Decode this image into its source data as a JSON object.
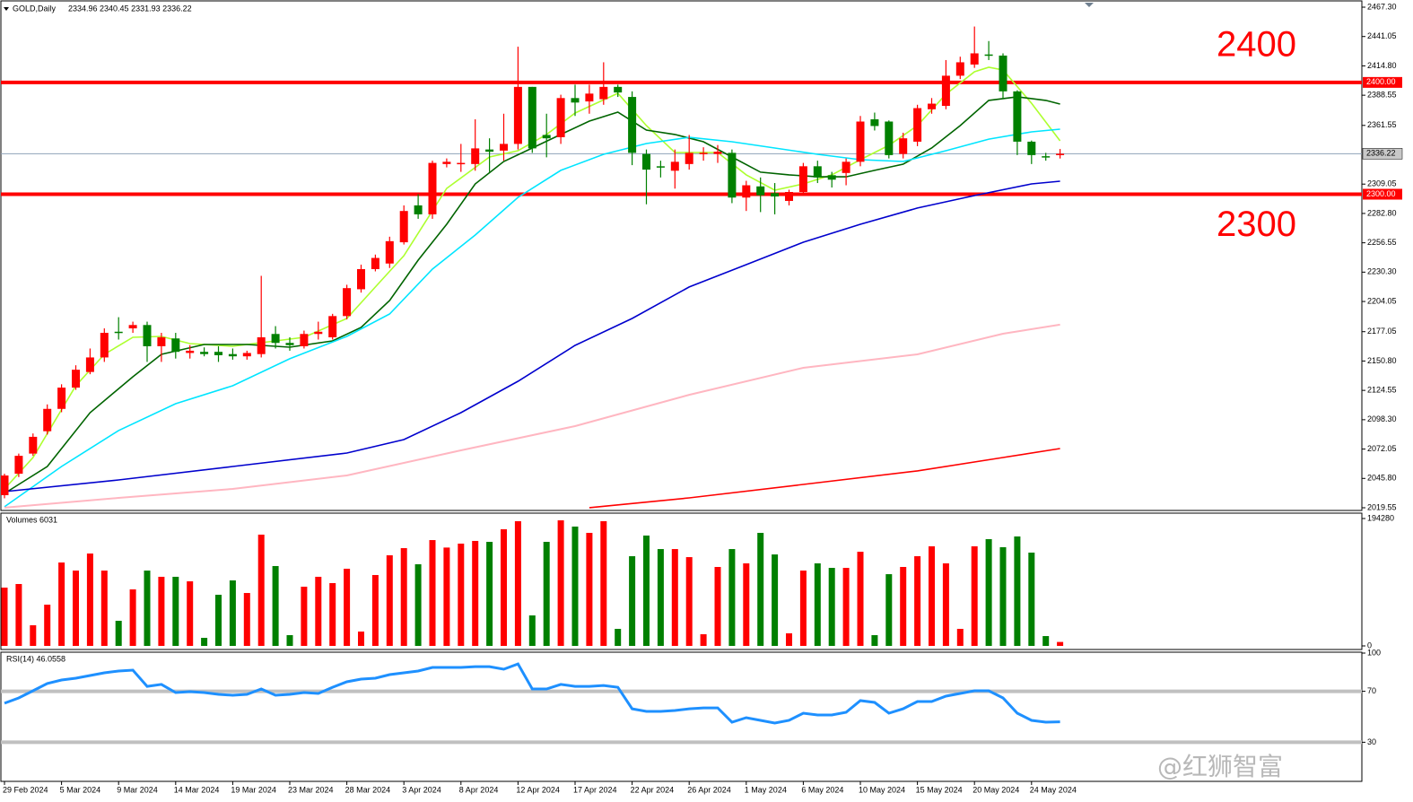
{
  "chart_data": [
    {
      "type": "candlestick",
      "title": "GOLD,Daily",
      "subtitle": "2334.96 2340.45 2331.93 2336.22",
      "categories": [
        "29 Feb 2024",
        null,
        null,
        null,
        "5 Mar 2024",
        null,
        null,
        null,
        "9 Mar 2024",
        null,
        null,
        null,
        "14 Mar 2024",
        null,
        null,
        null,
        "19 Mar 2024",
        null,
        null,
        null,
        "23 Mar 2024",
        null,
        null,
        null,
        "28 Mar 2024",
        null,
        null,
        null,
        "3 Apr 2024",
        null,
        null,
        null,
        "8 Apr 2024",
        null,
        null,
        null,
        "12 Apr 2024",
        null,
        null,
        null,
        "17 Apr 2024",
        null,
        null,
        null,
        "22 Apr 2024",
        null,
        null,
        null,
        "26 Apr 2024",
        null,
        null,
        null,
        "1 May 2024",
        null,
        null,
        null,
        "6 May 2024",
        null,
        null,
        null,
        "10 May 2024",
        null,
        null,
        null,
        "15 May 2024",
        null,
        null,
        null,
        "20 May 2024",
        null,
        null,
        null,
        "24 May 2024",
        null,
        null
      ],
      "open": [
        2030.8,
        2050,
        2068,
        2088,
        2108,
        2127,
        2141,
        2154,
        2177,
        2180,
        2183,
        2164,
        2171,
        2158,
        2159,
        2159,
        2157,
        2155,
        2157,
        2175,
        2167,
        2164,
        2175,
        2172,
        2191,
        2215,
        2233,
        2238,
        2257,
        2290,
        2282,
        2327,
        2327,
        2327,
        2340,
        2339,
        2345,
        2396,
        2353,
        2351,
        2386,
        2383,
        2385,
        2396,
        2387,
        2336,
        2325,
        2321,
        2327,
        2336,
        2336,
        2337,
        2297,
        2307,
        2301,
        2294,
        2302,
        2325,
        2317,
        2319,
        2329,
        2367,
        2365,
        2336,
        2347,
        2376,
        2379,
        2406,
        2416,
        2425,
        2424,
        2392,
        2347,
        2334,
        2334.96
      ],
      "high": [
        2050,
        2068,
        2086,
        2112,
        2130,
        2147,
        2162,
        2180,
        2190,
        2186,
        2186,
        2176,
        2176,
        2165,
        2163,
        2164,
        2162,
        2160,
        2227,
        2182,
        2172,
        2178,
        2186,
        2193,
        2219,
        2237,
        2246,
        2262,
        2290,
        2300,
        2330,
        2332,
        2345,
        2367,
        2350,
        2372,
        2432,
        2396,
        2372,
        2389,
        2398,
        2398,
        2418,
        2398,
        2392,
        2340,
        2330,
        2340,
        2353,
        2342,
        2344,
        2340,
        2312,
        2315,
        2310,
        2304,
        2328,
        2330,
        2320,
        2332,
        2370,
        2373,
        2366,
        2355,
        2380,
        2386,
        2420,
        2423,
        2450,
        2437,
        2426,
        2393,
        2348,
        2337,
        2340.45
      ],
      "low": [
        2028,
        2047,
        2066,
        2085,
        2105,
        2125,
        2139,
        2150,
        2170,
        2176,
        2150,
        2150,
        2153,
        2153,
        2155,
        2150,
        2152,
        2152,
        2154,
        2162,
        2160,
        2162,
        2170,
        2170,
        2188,
        2212,
        2231,
        2234,
        2255,
        2278,
        2278,
        2324,
        2320,
        2321,
        2320,
        2330,
        2340,
        2337,
        2333,
        2345,
        2370,
        2372,
        2380,
        2387,
        2326,
        2291,
        2315,
        2305,
        2322,
        2330,
        2328,
        2292,
        2285,
        2284,
        2282,
        2290,
        2300,
        2310,
        2306,
        2308,
        2325,
        2357,
        2332,
        2332,
        2343,
        2372,
        2376,
        2403,
        2413,
        2420,
        2385,
        2335,
        2327,
        2330,
        2331.93
      ],
      "close": [
        2048.4,
        2066,
        2083,
        2108,
        2127,
        2143,
        2154,
        2176,
        2176,
        2183,
        2164,
        2172,
        2159,
        2160,
        2157,
        2156,
        2155,
        2158,
        2172,
        2167,
        2165,
        2175,
        2177,
        2191,
        2216,
        2233,
        2243,
        2258,
        2285,
        2282,
        2328,
        2329,
        2328,
        2341,
        2338,
        2345,
        2396,
        2341,
        2350,
        2386,
        2382,
        2390,
        2396,
        2391,
        2337,
        2322,
        2324,
        2329,
        2337,
        2337,
        2338,
        2297,
        2308,
        2299,
        2298,
        2302,
        2325,
        2315,
        2313,
        2329,
        2365,
        2361,
        2335,
        2350,
        2377,
        2381,
        2406,
        2418,
        2426,
        2424,
        2392,
        2347,
        2335,
        2333,
        2336.22
      ],
      "up_color": "#ff0000",
      "down_color": "#008000",
      "series": [
        {
          "color": "#adff2f",
          "x": [
            0,
            2,
            5,
            7,
            9,
            11,
            13,
            16,
            19,
            21,
            24,
            26,
            28,
            31,
            34,
            36,
            38,
            40,
            43,
            45,
            47,
            50,
            52,
            54,
            56,
            58,
            60,
            62,
            64,
            66,
            68,
            69,
            70,
            72,
            74
          ],
          "values": [
            2036.4,
            2064.5,
            2128.7,
            2156.8,
            2172.0,
            2172.8,
            2166.4,
            2164.0,
            2168.8,
            2172.0,
            2188.9,
            2217.0,
            2245.0,
            2305.2,
            2333.3,
            2338.9,
            2353.4,
            2372.6,
            2390.3,
            2361.4,
            2337.3,
            2337.3,
            2317.3,
            2303.6,
            2309.2,
            2317.3,
            2330.9,
            2343.7,
            2361.4,
            2389.5,
            2409.5,
            2413.5,
            2411.1,
            2381.4,
            2347.7
          ]
        },
        {
          "color": "#006400",
          "x": [
            0,
            3,
            6,
            9,
            11,
            14,
            17,
            20,
            23,
            25,
            27,
            29,
            31,
            33,
            35,
            37,
            39,
            41,
            43,
            45,
            47,
            49,
            51,
            53,
            55,
            57,
            59,
            61,
            63,
            65,
            67,
            69,
            71,
            73,
            74
          ],
          "values": [
            2032.4,
            2056.5,
            2104.6,
            2136.7,
            2156.8,
            2165.6,
            2165.6,
            2163.2,
            2168.8,
            2180.8,
            2204.9,
            2241.0,
            2273.1,
            2309.2,
            2329.3,
            2341.3,
            2353.4,
            2365.4,
            2373.4,
            2357.4,
            2353.4,
            2346.9,
            2333.3,
            2319.7,
            2317.3,
            2315.6,
            2315.6,
            2321.3,
            2326.9,
            2341.3,
            2361.4,
            2383.9,
            2387.1,
            2383.9,
            2380.6
          ]
        },
        {
          "color": "#00e5ff",
          "x": [
            0,
            4,
            8,
            12,
            16,
            20,
            24,
            27,
            30,
            33,
            36,
            39,
            42,
            45,
            48,
            51,
            54,
            57,
            60,
            63,
            66,
            69,
            72,
            74
          ],
          "values": [
            2020.4,
            2056.5,
            2088.6,
            2112.6,
            2128.7,
            2152.8,
            2172.8,
            2192.9,
            2233.0,
            2263.5,
            2297.2,
            2321.3,
            2335.7,
            2345.3,
            2350.9,
            2346.9,
            2341.3,
            2335.7,
            2330.9,
            2329.3,
            2338.9,
            2349.3,
            2355.8,
            2358.2
          ]
        },
        {
          "color": "#0000cd",
          "x": [
            0,
            8,
            16,
            24,
            28,
            32,
            36,
            40,
            44,
            48,
            52,
            56,
            60,
            64,
            68,
            72,
            74
          ],
          "values": [
            2034.0,
            2044.4,
            2056.5,
            2068.5,
            2080.5,
            2104.6,
            2132.7,
            2164.8,
            2188.9,
            2217.0,
            2237.0,
            2257.1,
            2273.1,
            2287.6,
            2298.8,
            2309.2,
            2311.6
          ]
        },
        {
          "color": "#ffb6c1",
          "x": [
            0,
            8,
            16,
            24,
            32,
            40,
            48,
            56,
            64,
            70,
            74
          ],
          "values": [
            2019.6,
            2028.4,
            2036.4,
            2048.4,
            2070.9,
            2092.6,
            2120.6,
            2144.7,
            2156.8,
            2175.2,
            2183.3
          ]
        },
        {
          "color": "#ff0000",
          "x": [
            41,
            48,
            56,
            64,
            70,
            74
          ],
          "values": [
            2019.6,
            2028.4,
            2040.4,
            2052.5,
            2064.5,
            2072.5
          ]
        }
      ],
      "hlines": [
        {
          "value": 2400,
          "label": "2400.00",
          "note": "2400",
          "color": "#ff0000"
        },
        {
          "value": 2300,
          "label": "2300.00",
          "note": "2300",
          "color": "#ff0000"
        }
      ],
      "last_price": {
        "value": 2336.22,
        "label": "2336.22"
      },
      "ylim": [
        2019.55,
        2467.3
      ],
      "yticks": [
        {
          "value": 2467.3,
          "label": "2467.30"
        },
        {
          "value": 2441.05,
          "label": "2441.05"
        },
        {
          "value": 2414.8,
          "label": "2414.80"
        },
        {
          "value": 2388.55,
          "label": "2388.55"
        },
        {
          "value": 2361.55,
          "label": "2361.55"
        },
        {
          "value": 2309.05,
          "label": "2309.05"
        },
        {
          "value": 2282.8,
          "label": "2282.80"
        },
        {
          "value": 2256.55,
          "label": "2256.55"
        },
        {
          "value": 2230.3,
          "label": "2230.30"
        },
        {
          "value": 2204.05,
          "label": "2204.05"
        },
        {
          "value": 2177.05,
          "label": "2177.05"
        },
        {
          "value": 2150.8,
          "label": "2150.80"
        },
        {
          "value": 2124.55,
          "label": "2124.55"
        },
        {
          "value": 2098.3,
          "label": "2098.30"
        },
        {
          "value": 2072.05,
          "label": "2072.05"
        },
        {
          "value": 2045.8,
          "label": "2045.80"
        },
        {
          "value": 2019.55,
          "label": "2019.55"
        }
      ]
    },
    {
      "type": "bar",
      "title": "Volumes 6031",
      "values": [
        88900,
        94400,
        31500,
        62900,
        127200,
        114900,
        140900,
        114900,
        38300,
        86200,
        114900,
        105400,
        105400,
        98500,
        12300,
        78000,
        99900,
        80700,
        169700,
        121800,
        16400,
        90300,
        105400,
        95800,
        117700,
        21900,
        108100,
        138200,
        149100,
        124500,
        161400,
        150000,
        156000,
        160100,
        158700,
        177900,
        190200,
        46500,
        158700,
        191500,
        182000,
        172400,
        190200,
        26000,
        136800,
        168300,
        147700,
        147700,
        135400,
        17800,
        120400,
        147700,
        125900,
        172400,
        139500,
        19200,
        114900,
        125900,
        119000,
        119000,
        143600,
        16400,
        109400,
        120400,
        136800,
        151900,
        125900,
        26000,
        151900,
        162800,
        150500,
        166900,
        142300,
        15000,
        6031
      ],
      "ylim": [
        0,
        194280
      ],
      "yticks": [
        194280,
        0
      ]
    },
    {
      "type": "line",
      "title": "RSI(14) 46.0558",
      "color": "#1e90ff",
      "values": [
        60.6,
        64.8,
        70.4,
        76.1,
        78.9,
        80.3,
        82.4,
        84.5,
        85.9,
        86.6,
        73.9,
        75.4,
        69.0,
        69.7,
        69.0,
        67.6,
        66.9,
        67.6,
        71.8,
        66.9,
        67.6,
        69.0,
        68.3,
        73.2,
        77.5,
        79.6,
        80.3,
        83.1,
        84.5,
        85.9,
        88.7,
        88.7,
        88.7,
        89.4,
        89.4,
        87.3,
        91.5,
        71.8,
        71.8,
        75.4,
        73.9,
        73.9,
        74.6,
        73.2,
        56.3,
        54.2,
        54.2,
        54.9,
        56.3,
        57.0,
        57.0,
        45.8,
        49.3,
        47.2,
        45.1,
        47.2,
        52.8,
        51.4,
        51.4,
        53.5,
        62.7,
        61.3,
        52.8,
        56.3,
        62.0,
        62.0,
        66.2,
        68.3,
        70.4,
        70.4,
        64.8,
        52.8,
        47.2,
        45.8,
        46.0558
      ],
      "levels": [
        70,
        30
      ],
      "level_color": "#c0c0c0",
      "ylim": [
        0,
        100
      ],
      "yticks": [
        100,
        70,
        30
      ]
    }
  ],
  "watermark": "@红狮智富"
}
